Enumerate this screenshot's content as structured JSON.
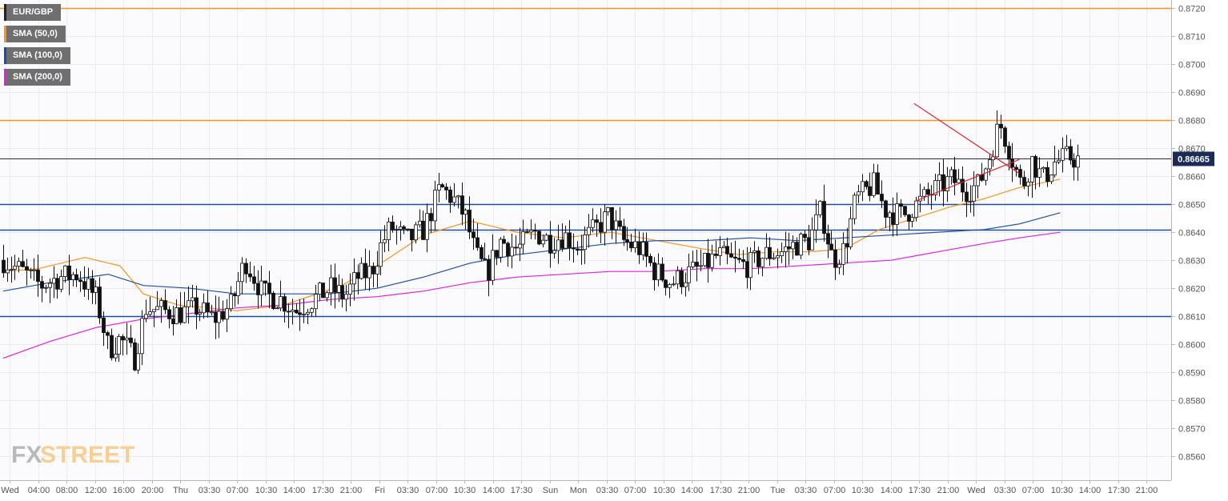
{
  "legend": [
    {
      "label": "EUR/GBP",
      "color": "#222222"
    },
    {
      "label": "SMA (50,0)",
      "color": "#f7931e"
    },
    {
      "label": "SMA (100,0)",
      "color": "#1f4e9c"
    },
    {
      "label": "SMA (200,0)",
      "color": "#e01fe0"
    }
  ],
  "watermark": {
    "part1": "FX",
    "part2": "STREET"
  },
  "current_price": {
    "label": "0.86665",
    "value": 0.86665,
    "color": "#1b2a57"
  },
  "chart_data": {
    "type": "candlestick",
    "symbol": "EUR/GBP",
    "ylim": [
      0.8552,
      0.8722
    ],
    "yticks": [
      "0.8560",
      "0.8570",
      "0.8580",
      "0.8590",
      "0.8600",
      "0.8610",
      "0.8620",
      "0.8630",
      "0.8640",
      "0.8650",
      "0.8660",
      "0.8670",
      "0.8680",
      "0.8690",
      "0.8700",
      "0.8710",
      "0.8720"
    ],
    "xtick_labels": [
      "Wed",
      "04:00",
      "08:00",
      "12:00",
      "16:00",
      "20:00",
      "Thu",
      "03:30",
      "07:00",
      "10:30",
      "14:00",
      "17:30",
      "21:00",
      "Fri",
      "03:30",
      "07:00",
      "10:30",
      "14:00",
      "17:30",
      "Sun",
      "Mon",
      "03:30",
      "07:00",
      "10:30",
      "14:00",
      "17:30",
      "21:00",
      "Tue",
      "03:30",
      "07:00",
      "10:30",
      "14:00",
      "17:30",
      "21:00",
      "Wed",
      "03:30",
      "07:00",
      "10:30",
      "14:00",
      "17:30",
      "21:00"
    ],
    "horizontal_levels": [
      {
        "value": 0.872,
        "color": "#f7931e"
      },
      {
        "value": 0.868,
        "color": "#f7931e"
      },
      {
        "value": 0.865,
        "color": "#1f4e9c"
      },
      {
        "value": 0.8641,
        "color": "#1f4e9c"
      },
      {
        "value": 0.861,
        "color": "#1f4e9c"
      }
    ],
    "trendlines": [
      {
        "from": [
          0.78,
          0.8686
        ],
        "to": [
          0.87,
          0.8661
        ],
        "color": "#e0202a"
      },
      {
        "from": [
          0.78,
          0.8651
        ],
        "to": [
          0.87,
          0.8666
        ],
        "color": "#e0202a"
      }
    ],
    "candle_path": [
      [
        0,
        0.863
      ],
      [
        0.016,
        0.8626
      ],
      [
        0.032,
        0.8621
      ],
      [
        0.048,
        0.8624
      ],
      [
        0.064,
        0.8625
      ],
      [
        0.08,
        0.8616
      ],
      [
        0.09,
        0.8598
      ],
      [
        0.1,
        0.8602
      ],
      [
        0.112,
        0.8595
      ],
      [
        0.122,
        0.8613
      ],
      [
        0.135,
        0.8612
      ],
      [
        0.15,
        0.8611
      ],
      [
        0.165,
        0.8613
      ],
      [
        0.18,
        0.8609
      ],
      [
        0.195,
        0.8614
      ],
      [
        0.207,
        0.863
      ],
      [
        0.222,
        0.8618
      ],
      [
        0.238,
        0.8616
      ],
      [
        0.25,
        0.8612
      ],
      [
        0.265,
        0.8616
      ],
      [
        0.28,
        0.862
      ],
      [
        0.292,
        0.8617
      ],
      [
        0.303,
        0.8624
      ],
      [
        0.315,
        0.8626
      ],
      [
        0.324,
        0.8636
      ],
      [
        0.332,
        0.8642
      ],
      [
        0.345,
        0.8637
      ],
      [
        0.36,
        0.8641
      ],
      [
        0.374,
        0.8656
      ],
      [
        0.385,
        0.8652
      ],
      [
        0.396,
        0.8645
      ],
      [
        0.404,
        0.8632
      ],
      [
        0.414,
        0.8625
      ],
      [
        0.425,
        0.8637
      ],
      [
        0.44,
        0.8634
      ],
      [
        0.455,
        0.864
      ],
      [
        0.468,
        0.8637
      ],
      [
        0.48,
        0.8639
      ],
      [
        0.492,
        0.8635
      ],
      [
        0.504,
        0.864
      ],
      [
        0.518,
        0.8646
      ],
      [
        0.53,
        0.8637
      ],
      [
        0.545,
        0.8634
      ],
      [
        0.558,
        0.8626
      ],
      [
        0.572,
        0.8622
      ],
      [
        0.585,
        0.8625
      ],
      [
        0.6,
        0.8628
      ],
      [
        0.612,
        0.8632
      ],
      [
        0.625,
        0.8629
      ],
      [
        0.638,
        0.8628
      ],
      [
        0.652,
        0.8632
      ],
      [
        0.666,
        0.8633
      ],
      [
        0.68,
        0.8636
      ],
      [
        0.69,
        0.8637
      ],
      [
        0.7,
        0.8648
      ],
      [
        0.71,
        0.863
      ],
      [
        0.72,
        0.8634
      ],
      [
        0.73,
        0.8652
      ],
      [
        0.745,
        0.8657
      ],
      [
        0.755,
        0.8648
      ],
      [
        0.77,
        0.8646
      ],
      [
        0.785,
        0.8651
      ],
      [
        0.8,
        0.8656
      ],
      [
        0.812,
        0.8659
      ],
      [
        0.825,
        0.8655
      ],
      [
        0.835,
        0.8657
      ],
      [
        0.845,
        0.8668
      ],
      [
        0.853,
        0.8679
      ],
      [
        0.86,
        0.8671
      ],
      [
        0.872,
        0.8656
      ],
      [
        0.88,
        0.8666
      ],
      [
        0.89,
        0.8659
      ],
      [
        0.9,
        0.8665
      ],
      [
        0.912,
        0.8667
      ],
      [
        0.92,
        0.8666
      ]
    ],
    "series": [
      {
        "name": "SMA (50,0)",
        "color": "#f7931e",
        "points": [
          [
            0,
            0.8626
          ],
          [
            0.03,
            0.8627
          ],
          [
            0.07,
            0.8631
          ],
          [
            0.1,
            0.8628
          ],
          [
            0.12,
            0.8618
          ],
          [
            0.15,
            0.8614
          ],
          [
            0.2,
            0.8612
          ],
          [
            0.24,
            0.8614
          ],
          [
            0.29,
            0.8621
          ],
          [
            0.32,
            0.8628
          ],
          [
            0.36,
            0.8639
          ],
          [
            0.4,
            0.8644
          ],
          [
            0.44,
            0.864
          ],
          [
            0.48,
            0.8638
          ],
          [
            0.52,
            0.864
          ],
          [
            0.56,
            0.8637
          ],
          [
            0.6,
            0.8634
          ],
          [
            0.63,
            0.8632
          ],
          [
            0.66,
            0.8633
          ],
          [
            0.69,
            0.8633
          ],
          [
            0.72,
            0.8634
          ],
          [
            0.75,
            0.8641
          ],
          [
            0.78,
            0.8645
          ],
          [
            0.81,
            0.8649
          ],
          [
            0.84,
            0.8652
          ],
          [
            0.87,
            0.8656
          ],
          [
            0.905,
            0.8659
          ]
        ]
      },
      {
        "name": "SMA (100,0)",
        "color": "#1f4e9c",
        "points": [
          [
            0,
            0.8619
          ],
          [
            0.04,
            0.8622
          ],
          [
            0.09,
            0.8625
          ],
          [
            0.12,
            0.8621
          ],
          [
            0.16,
            0.862
          ],
          [
            0.2,
            0.8618
          ],
          [
            0.24,
            0.8618
          ],
          [
            0.28,
            0.8618
          ],
          [
            0.32,
            0.862
          ],
          [
            0.36,
            0.8624
          ],
          [
            0.4,
            0.8629
          ],
          [
            0.44,
            0.8632
          ],
          [
            0.48,
            0.8634
          ],
          [
            0.52,
            0.8636
          ],
          [
            0.56,
            0.8637
          ],
          [
            0.6,
            0.8637
          ],
          [
            0.64,
            0.8638
          ],
          [
            0.68,
            0.8637
          ],
          [
            0.72,
            0.8638
          ],
          [
            0.76,
            0.8639
          ],
          [
            0.8,
            0.864
          ],
          [
            0.84,
            0.8641
          ],
          [
            0.87,
            0.8643
          ],
          [
            0.905,
            0.8647
          ]
        ]
      },
      {
        "name": "SMA (200,0)",
        "color": "#e01fe0",
        "points": [
          [
            0,
            0.8595
          ],
          [
            0.04,
            0.8601
          ],
          [
            0.08,
            0.8606
          ],
          [
            0.12,
            0.8609
          ],
          [
            0.16,
            0.8611
          ],
          [
            0.2,
            0.8613
          ],
          [
            0.24,
            0.8614
          ],
          [
            0.28,
            0.8616
          ],
          [
            0.32,
            0.8617
          ],
          [
            0.36,
            0.8619
          ],
          [
            0.4,
            0.8622
          ],
          [
            0.44,
            0.8624
          ],
          [
            0.48,
            0.8625
          ],
          [
            0.52,
            0.8626
          ],
          [
            0.56,
            0.8626
          ],
          [
            0.6,
            0.8627
          ],
          [
            0.64,
            0.8627
          ],
          [
            0.68,
            0.8628
          ],
          [
            0.72,
            0.8629
          ],
          [
            0.76,
            0.863
          ],
          [
            0.8,
            0.8633
          ],
          [
            0.84,
            0.8636
          ],
          [
            0.87,
            0.8638
          ],
          [
            0.905,
            0.864
          ]
        ]
      }
    ],
    "grid": true,
    "legend_position": "top-left"
  }
}
